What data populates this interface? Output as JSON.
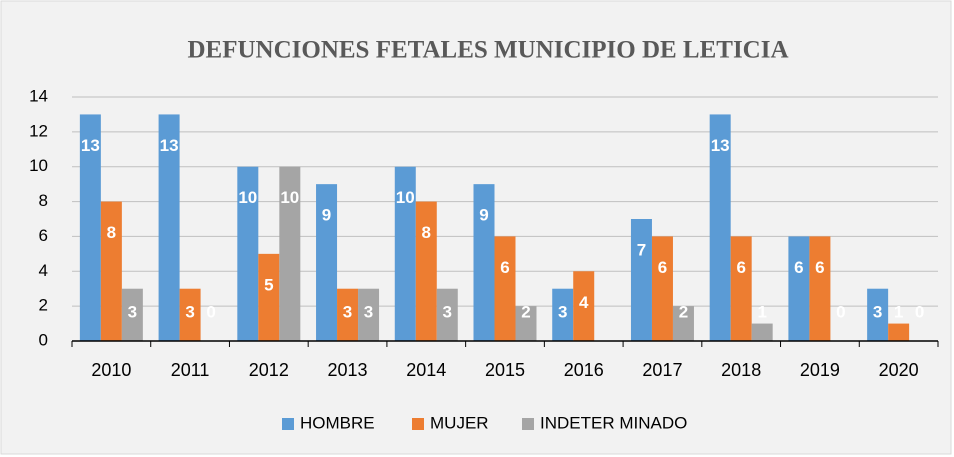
{
  "chart_data": {
    "type": "bar",
    "title": "DEFUNCIONES FETALES MUNICIPIO DE LETICIA",
    "categories": [
      "2010",
      "2011",
      "2012",
      "2013",
      "2014",
      "2015",
      "2016",
      "2017",
      "2018",
      "2019",
      "2020"
    ],
    "series": [
      {
        "name": "HOMBRE",
        "color": "#5b9bd5",
        "values": [
          13,
          13,
          10,
          9,
          10,
          9,
          3,
          7,
          13,
          6,
          3
        ]
      },
      {
        "name": "MUJER",
        "color": "#ed7d31",
        "values": [
          8,
          3,
          5,
          3,
          8,
          6,
          4,
          6,
          6,
          6,
          1
        ]
      },
      {
        "name": "INDETER MINADO",
        "color": "#a5a5a5",
        "values": [
          3,
          0,
          10,
          3,
          3,
          2,
          null,
          2,
          1,
          0,
          0
        ]
      }
    ],
    "ylim": [
      0,
      14
    ],
    "yticks": [
      0,
      2,
      4,
      6,
      8,
      10,
      12,
      14
    ],
    "grid": true,
    "legend": "bottom"
  }
}
